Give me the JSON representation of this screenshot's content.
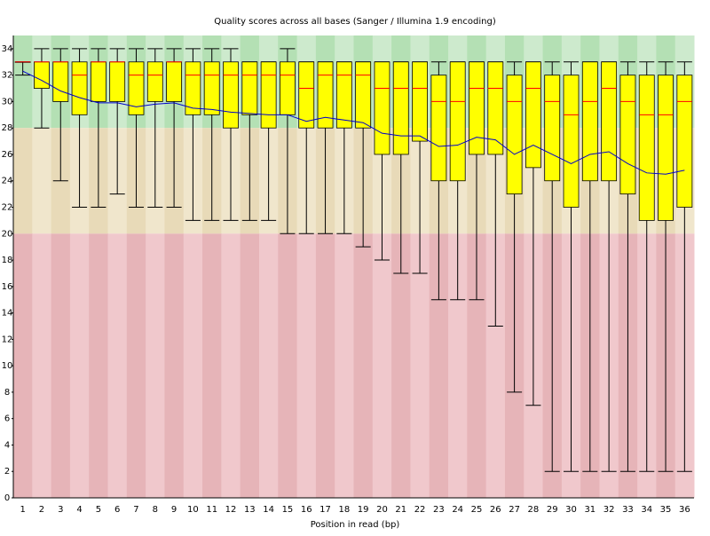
{
  "chart_data": {
    "type": "box",
    "title": "Quality scores across all bases (Sanger / Illumina 1.9 encoding)",
    "x_label": "Position in read (bp)",
    "categories": [
      "1",
      "2",
      "3",
      "4",
      "5",
      "6",
      "7",
      "8",
      "9",
      "10",
      "11",
      "12",
      "13",
      "14",
      "15",
      "16",
      "17",
      "18",
      "19",
      "20",
      "21",
      "22",
      "23",
      "24",
      "25",
      "26",
      "27",
      "28",
      "29",
      "30",
      "31",
      "32",
      "33",
      "34",
      "35",
      "36"
    ],
    "whislo": [
      32,
      28,
      24,
      22,
      22,
      23,
      22,
      22,
      22,
      21,
      21,
      21,
      21,
      21,
      20,
      20,
      20,
      20,
      19,
      18,
      17,
      17,
      15,
      15,
      15,
      13,
      8,
      7,
      2,
      2,
      2,
      2,
      2,
      2,
      2,
      2
    ],
    "q1": [
      33,
      31,
      30,
      29,
      30,
      30,
      29,
      30,
      30,
      29,
      29,
      28,
      29,
      28,
      29,
      28,
      28,
      28,
      28,
      26,
      26,
      27,
      24,
      24,
      26,
      26,
      23,
      25,
      24,
      22,
      24,
      24,
      23,
      21,
      21,
      22
    ],
    "med": [
      33,
      33,
      33,
      32,
      33,
      33,
      32,
      32,
      33,
      32,
      32,
      32,
      32,
      32,
      32,
      31,
      32,
      32,
      32,
      31,
      31,
      31,
      30,
      30,
      31,
      31,
      30,
      31,
      30,
      29,
      30,
      31,
      30,
      29,
      29,
      30
    ],
    "q3": [
      33,
      33,
      33,
      33,
      33,
      33,
      33,
      33,
      33,
      33,
      33,
      33,
      33,
      33,
      33,
      33,
      33,
      33,
      33,
      33,
      33,
      33,
      32,
      33,
      33,
      33,
      32,
      33,
      32,
      32,
      33,
      33,
      32,
      32,
      32,
      32
    ],
    "whishi": [
      33,
      34,
      34,
      34,
      34,
      34,
      34,
      34,
      34,
      34,
      34,
      34,
      33,
      33,
      34,
      33,
      33,
      33,
      33,
      33,
      33,
      33,
      33,
      33,
      33,
      33,
      33,
      33,
      33,
      33,
      33,
      33,
      33,
      33,
      33,
      33
    ],
    "mean": [
      32.3,
      31.6,
      30.8,
      30.3,
      29.9,
      29.9,
      29.6,
      29.8,
      29.9,
      29.5,
      29.4,
      29.2,
      29.1,
      29.0,
      29.0,
      28.5,
      28.8,
      28.6,
      28.4,
      27.6,
      27.4,
      27.4,
      26.6,
      26.7,
      27.3,
      27.1,
      26.0,
      26.7,
      26.0,
      25.3,
      26.0,
      26.2,
      25.3,
      24.6,
      24.5,
      24.8
    ],
    "box_color": "#ffff00",
    "median_color": "#ff0000",
    "mean_color": "#0000cc",
    "zones": [
      {
        "from": 28,
        "to": 35,
        "colors": [
          "#b4e0b4",
          "#cdeacd"
        ]
      },
      {
        "from": 20,
        "to": 28,
        "colors": [
          "#e8dab8",
          "#f0e6cc"
        ]
      },
      {
        "from": 0,
        "to": 20,
        "colors": [
          "#e6b4b8",
          "#f0c8cc"
        ]
      }
    ],
    "ylim": [
      0,
      35
    ],
    "yticks": [
      0,
      2,
      4,
      6,
      8,
      10,
      12,
      14,
      16,
      18,
      20,
      22,
      24,
      26,
      28,
      30,
      32,
      34
    ]
  }
}
